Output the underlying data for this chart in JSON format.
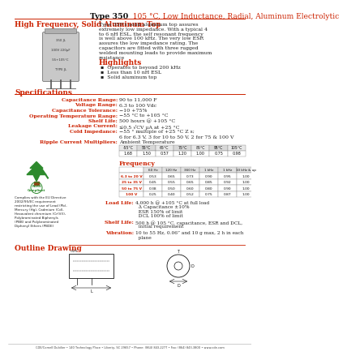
{
  "title_bold": "Type 350",
  "title_red": "  105 °C, Low Inductance, Radial, Aluminum Electrolytic",
  "subtitle": "High Frequency, Solid Aluminum Top",
  "bg_color": "#ffffff",
  "red": "#cc2200",
  "dark": "#111111",
  "body": "#222222",
  "gray": "#888888",
  "description": "Type 350’s solid aluminum top assures extremely low impedance.  With a typical 4 to 6 nH ESL, the self resonant frequency is well above 100 kHz.  The very low ESR assures the low impedance rating.  The capacitors are fitted with three rugged welded mounting leads to provide maximum resistance",
  "highlights_title": "Highlights",
  "highlights": [
    "Operates to beyond 200 kHz",
    "Less than 10 nH ESL",
    "Solid aluminum top"
  ],
  "specs_title": "Specifications",
  "spec_labels": [
    "Capacitance Range:",
    "Voltage Range:",
    "Capacitance Tolerance:",
    "Operating Temperature Range:",
    "Shelf Life:",
    "Leakage Current:",
    "Cold Impedance:",
    "Ripple Current Multipliers:"
  ],
  "spec_values": [
    "90 to 11,000 F",
    "6.3 to 100 Vdc",
    "−10 +75%",
    "−55 °C to +105 °C",
    "500 hours @ +105 °C",
    "≤0.5 √CV µA at +25 °C",
    "−55 ° multiple of +25 °C Z s;",
    "Ambient Temperature"
  ],
  "cold_imp_line2": "6 for 6.3 V, 3 for 10 to 50 V, 2 for 75 & 100 V",
  "ripple_temp_headers": [
    "-55°C",
    "55°C",
    "65°C",
    "75°C",
    "85°C",
    "95°C",
    "105°C"
  ],
  "ripple_temp_values": [
    "1.68",
    "1.50",
    "0.57",
    "1.20",
    "1.00",
    "0.75",
    "0.98"
  ],
  "freq_title": "Frequency",
  "freq_col_labels": [
    "",
    "60 Hz",
    "120 Hz",
    "360 Hz",
    "1 kHz",
    "1 kHz",
    "10 kHz & up"
  ],
  "freq_rows": [
    [
      "6.3 to 20 V",
      "0.53",
      "0.65",
      "0.73",
      "0.90",
      "0.95",
      "1.00"
    ],
    [
      "25 to 35 V",
      "0.45",
      "0.55",
      "0.65",
      "0.85",
      "0.92",
      "1.00"
    ],
    [
      "50 to 75 V",
      "0.38",
      "0.50",
      "0.60",
      "0.80",
      "0.90",
      "1.00"
    ],
    [
      "100 V",
      "0.25",
      "0.40",
      "0.52",
      "0.75",
      "0.87",
      "1.00"
    ]
  ],
  "load_life_label": "Load Life:",
  "load_life_lines": [
    "4,000 h @ +105 °C at full load",
    "  Δ Capacitance ±10%",
    "  ESR 150% of limit",
    "  DCL 100% of limit"
  ],
  "shelf_life_label": "Shelf Life:",
  "shelf_life_lines": [
    "500 h @ 105 °C, capacitance, ESR and DCL,",
    "  initial requirement"
  ],
  "vibration_label": "Vibration:",
  "vibration_lines": [
    "10 to 55 Hz, 0.06” and 10 g max, 2 h in each",
    "  plane"
  ],
  "outline_title": "Outline Drawing",
  "rohs_text": "Complies with the EU Directive\n2002/95/EC requirement\nrestricting the use of Lead (Pb),\nMercury (Hg), Cadmium (Cd),\nHexavalent chromium (Cr(VI)),\nPolybrominated Biphenyls\n(PBB) and Polybrominated\nDiphenyl Ethers (PBDE)",
  "footer": "CDE/Cornell Dubilier • 140 Technology Place • Liberty, SC 29657 • Phone: (864) 843-2277 • Fax: (864) 843-3800 • www.cde.com"
}
